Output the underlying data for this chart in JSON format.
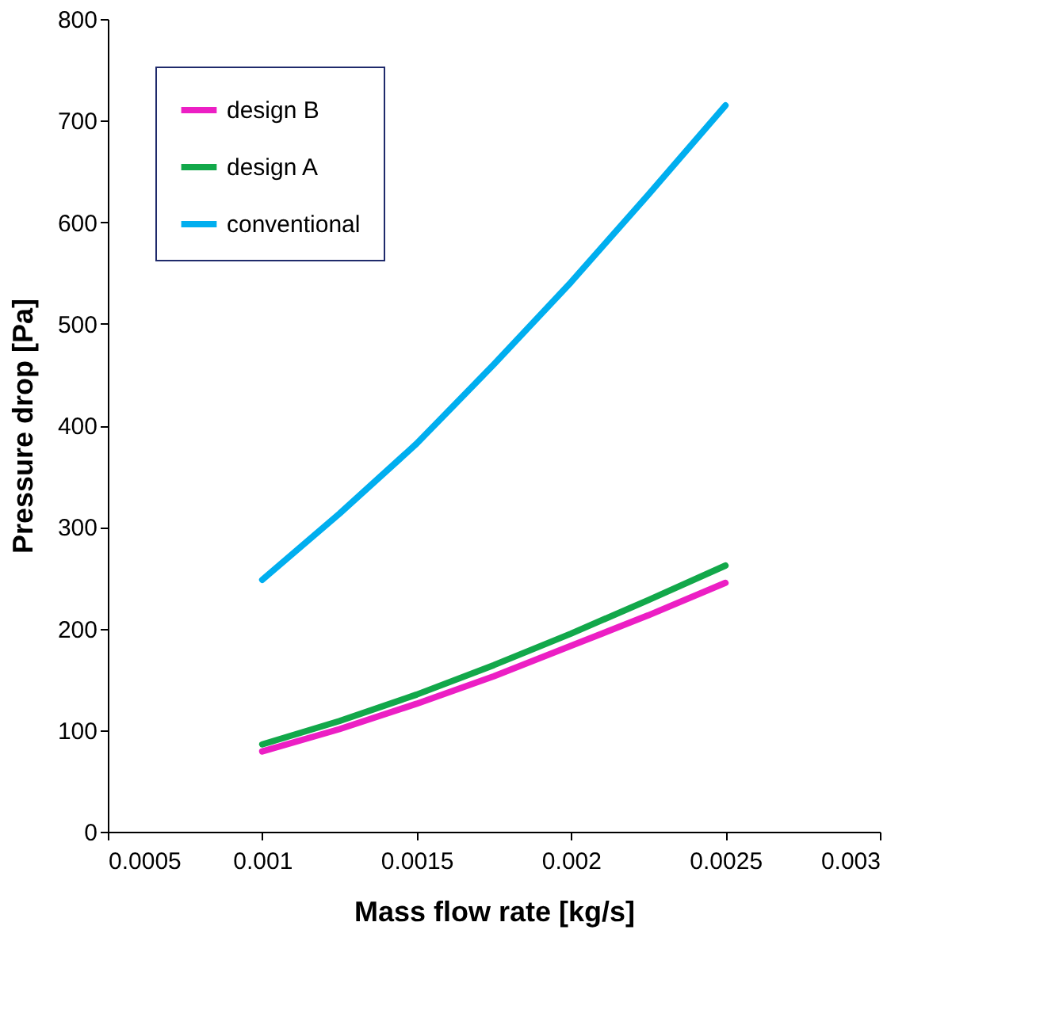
{
  "chart_data": {
    "type": "line",
    "xlabel": "Mass flow rate [kg/s]",
    "ylabel": "Pressure drop [Pa]",
    "x": [
      0.001,
      0.00125,
      0.0015,
      0.00175,
      0.002,
      0.00225,
      0.0025
    ],
    "series": [
      {
        "name": "design B",
        "color": "#ec1fc4",
        "values": [
          79,
          101,
          126,
          153,
          183,
          213,
          245
        ]
      },
      {
        "name": "design A",
        "color": "#12a84a",
        "values": [
          86,
          109,
          135,
          164,
          195,
          228,
          262
        ]
      },
      {
        "name": "conventional",
        "color": "#00aeef",
        "values": [
          248,
          313,
          382,
          460,
          541,
          627,
          715
        ]
      }
    ],
    "xlim": [
      0.0005,
      0.003
    ],
    "xticks": [
      0.0005,
      0.001,
      0.0015,
      0.002,
      0.0025,
      0.003
    ],
    "ylim": [
      0,
      800
    ],
    "yticks": [
      0,
      100,
      200,
      300,
      400,
      500,
      600,
      700,
      800
    ],
    "legend": "top left"
  }
}
